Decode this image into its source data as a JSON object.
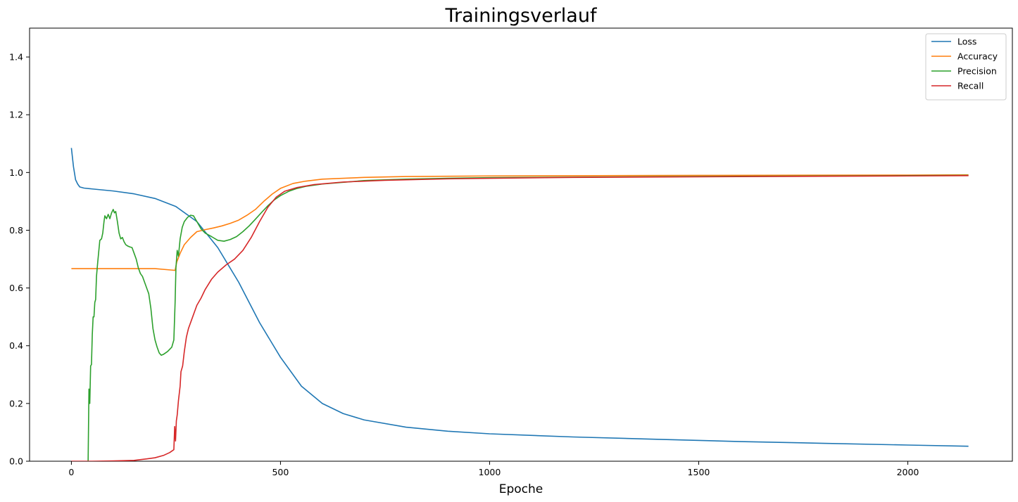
{
  "chart_data": {
    "type": "line",
    "title": "Trainingsverlauf",
    "xlabel": "Epoche",
    "ylabel": "",
    "xlim": [
      -100,
      2250
    ],
    "ylim": [
      0,
      1.5
    ],
    "x_ticks": [
      0,
      500,
      1000,
      1500,
      2000
    ],
    "y_ticks": [
      0.0,
      0.2,
      0.4,
      0.6,
      0.8,
      1.0,
      1.2,
      1.4
    ],
    "x_tick_labels": [
      "0",
      "500",
      "1000",
      "1500",
      "2000"
    ],
    "y_tick_labels": [
      "0.0",
      "0.2",
      "0.4",
      "0.6",
      "0.8",
      "1.0",
      "1.2",
      "1.4"
    ],
    "grid": false,
    "legend_position": "top-right",
    "series": [
      {
        "name": "Loss",
        "color": "#1f77b4",
        "points": [
          [
            0,
            1.085
          ],
          [
            5,
            1.02
          ],
          [
            10,
            0.975
          ],
          [
            15,
            0.96
          ],
          [
            20,
            0.95
          ],
          [
            30,
            0.946
          ],
          [
            50,
            0.943
          ],
          [
            100,
            0.936
          ],
          [
            150,
            0.926
          ],
          [
            200,
            0.91
          ],
          [
            250,
            0.882
          ],
          [
            300,
            0.83
          ],
          [
            350,
            0.74
          ],
          [
            400,
            0.62
          ],
          [
            450,
            0.48
          ],
          [
            500,
            0.36
          ],
          [
            550,
            0.26
          ],
          [
            600,
            0.2
          ],
          [
            650,
            0.165
          ],
          [
            700,
            0.143
          ],
          [
            800,
            0.118
          ],
          [
            900,
            0.104
          ],
          [
            1000,
            0.095
          ],
          [
            1200,
            0.084
          ],
          [
            1400,
            0.076
          ],
          [
            1600,
            0.068
          ],
          [
            1800,
            0.062
          ],
          [
            2000,
            0.056
          ],
          [
            2145,
            0.052
          ]
        ]
      },
      {
        "name": "Accuracy",
        "color": "#ff7f0e",
        "points": [
          [
            0,
            0.667
          ],
          [
            100,
            0.667
          ],
          [
            200,
            0.667
          ],
          [
            240,
            0.662
          ],
          [
            248,
            0.661
          ],
          [
            252,
            0.69
          ],
          [
            260,
            0.72
          ],
          [
            270,
            0.75
          ],
          [
            285,
            0.775
          ],
          [
            300,
            0.795
          ],
          [
            320,
            0.802
          ],
          [
            340,
            0.808
          ],
          [
            360,
            0.815
          ],
          [
            380,
            0.824
          ],
          [
            400,
            0.835
          ],
          [
            420,
            0.852
          ],
          [
            440,
            0.872
          ],
          [
            460,
            0.9
          ],
          [
            480,
            0.925
          ],
          [
            500,
            0.945
          ],
          [
            530,
            0.962
          ],
          [
            560,
            0.97
          ],
          [
            600,
            0.977
          ],
          [
            700,
            0.983
          ],
          [
            800,
            0.986
          ],
          [
            1000,
            0.988
          ],
          [
            1500,
            0.99
          ],
          [
            2000,
            0.991
          ],
          [
            2145,
            0.992
          ]
        ]
      },
      {
        "name": "Precision",
        "color": "#2ca02c",
        "points": [
          [
            40,
            0.0
          ],
          [
            42,
            0.25
          ],
          [
            44,
            0.2
          ],
          [
            46,
            0.33
          ],
          [
            48,
            0.335
          ],
          [
            50,
            0.44
          ],
          [
            52,
            0.5
          ],
          [
            54,
            0.5
          ],
          [
            56,
            0.55
          ],
          [
            58,
            0.56
          ],
          [
            60,
            0.64
          ],
          [
            63,
            0.69
          ],
          [
            65,
            0.72
          ],
          [
            68,
            0.765
          ],
          [
            72,
            0.77
          ],
          [
            75,
            0.79
          ],
          [
            78,
            0.83
          ],
          [
            80,
            0.85
          ],
          [
            84,
            0.84
          ],
          [
            88,
            0.855
          ],
          [
            92,
            0.84
          ],
          [
            96,
            0.86
          ],
          [
            100,
            0.872
          ],
          [
            103,
            0.86
          ],
          [
            106,
            0.865
          ],
          [
            110,
            0.83
          ],
          [
            114,
            0.79
          ],
          [
            118,
            0.77
          ],
          [
            122,
            0.775
          ],
          [
            126,
            0.76
          ],
          [
            130,
            0.75
          ],
          [
            135,
            0.745
          ],
          [
            140,
            0.742
          ],
          [
            145,
            0.74
          ],
          [
            150,
            0.72
          ],
          [
            155,
            0.7
          ],
          [
            160,
            0.67
          ],
          [
            165,
            0.65
          ],
          [
            170,
            0.64
          ],
          [
            175,
            0.62
          ],
          [
            180,
            0.6
          ],
          [
            185,
            0.58
          ],
          [
            190,
            0.53
          ],
          [
            195,
            0.46
          ],
          [
            200,
            0.42
          ],
          [
            205,
            0.395
          ],
          [
            210,
            0.375
          ],
          [
            215,
            0.367
          ],
          [
            220,
            0.37
          ],
          [
            230,
            0.38
          ],
          [
            240,
            0.395
          ],
          [
            245,
            0.42
          ],
          [
            248,
            0.55
          ],
          [
            250,
            0.67
          ],
          [
            253,
            0.73
          ],
          [
            256,
            0.71
          ],
          [
            260,
            0.77
          ],
          [
            265,
            0.81
          ],
          [
            270,
            0.83
          ],
          [
            278,
            0.845
          ],
          [
            285,
            0.852
          ],
          [
            292,
            0.85
          ],
          [
            300,
            0.83
          ],
          [
            310,
            0.805
          ],
          [
            320,
            0.79
          ],
          [
            335,
            0.778
          ],
          [
            350,
            0.765
          ],
          [
            365,
            0.762
          ],
          [
            380,
            0.768
          ],
          [
            395,
            0.778
          ],
          [
            410,
            0.795
          ],
          [
            425,
            0.815
          ],
          [
            440,
            0.838
          ],
          [
            455,
            0.862
          ],
          [
            470,
            0.885
          ],
          [
            485,
            0.905
          ],
          [
            500,
            0.92
          ],
          [
            520,
            0.935
          ],
          [
            540,
            0.945
          ],
          [
            560,
            0.952
          ],
          [
            600,
            0.96
          ],
          [
            700,
            0.972
          ],
          [
            800,
            0.977
          ],
          [
            900,
            0.98
          ],
          [
            1000,
            0.982
          ],
          [
            1200,
            0.984
          ],
          [
            1500,
            0.986
          ],
          [
            1800,
            0.988
          ],
          [
            2000,
            0.989
          ],
          [
            2145,
            0.99
          ]
        ]
      },
      {
        "name": "Recall",
        "color": "#d62728",
        "points": [
          [
            0,
            0.0
          ],
          [
            50,
            0.0
          ],
          [
            100,
            0.001
          ],
          [
            150,
            0.003
          ],
          [
            180,
            0.008
          ],
          [
            200,
            0.012
          ],
          [
            220,
            0.02
          ],
          [
            235,
            0.03
          ],
          [
            245,
            0.04
          ],
          [
            247,
            0.12
          ],
          [
            249,
            0.07
          ],
          [
            251,
            0.14
          ],
          [
            253,
            0.16
          ],
          [
            256,
            0.21
          ],
          [
            260,
            0.26
          ],
          [
            262,
            0.31
          ],
          [
            266,
            0.33
          ],
          [
            270,
            0.38
          ],
          [
            275,
            0.43
          ],
          [
            280,
            0.46
          ],
          [
            290,
            0.5
          ],
          [
            300,
            0.54
          ],
          [
            310,
            0.565
          ],
          [
            320,
            0.595
          ],
          [
            335,
            0.63
          ],
          [
            350,
            0.655
          ],
          [
            370,
            0.68
          ],
          [
            390,
            0.7
          ],
          [
            410,
            0.73
          ],
          [
            430,
            0.775
          ],
          [
            450,
            0.83
          ],
          [
            470,
            0.88
          ],
          [
            490,
            0.915
          ],
          [
            510,
            0.935
          ],
          [
            540,
            0.948
          ],
          [
            580,
            0.958
          ],
          [
            650,
            0.967
          ],
          [
            750,
            0.973
          ],
          [
            900,
            0.978
          ],
          [
            1000,
            0.98
          ],
          [
            1200,
            0.983
          ],
          [
            1500,
            0.985
          ],
          [
            1800,
            0.987
          ],
          [
            2000,
            0.988
          ],
          [
            2145,
            0.989
          ]
        ]
      }
    ]
  }
}
